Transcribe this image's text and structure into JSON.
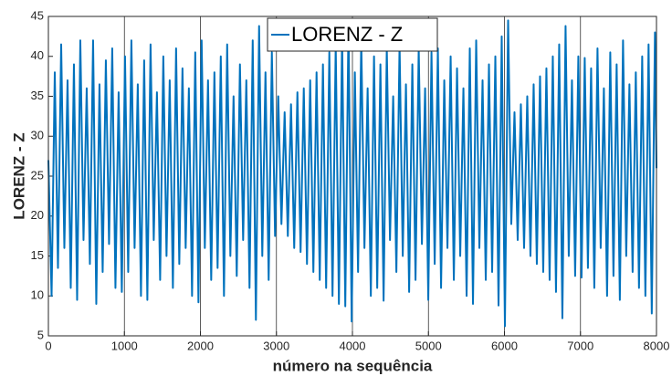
{
  "chart_data": {
    "type": "line",
    "xlabel": "número na sequência",
    "ylabel": "LORENZ - Z",
    "legend_loc": "upper center",
    "grid": "x",
    "xlim": [
      0,
      8000
    ],
    "xticks": [
      0,
      1000,
      2000,
      3000,
      4000,
      5000,
      6000,
      7000,
      8000
    ],
    "ylim": [
      5,
      45
    ],
    "yticks": [
      5,
      10,
      15,
      20,
      25,
      30,
      35,
      40,
      45
    ],
    "x": [
      0,
      42,
      84,
      126,
      168,
      210,
      252,
      294,
      336,
      378,
      420,
      462,
      504,
      546,
      588,
      630,
      672,
      714,
      756,
      798,
      840,
      882,
      924,
      966,
      1008,
      1050,
      1092,
      1134,
      1176,
      1218,
      1260,
      1302,
      1344,
      1386,
      1428,
      1470,
      1512,
      1554,
      1596,
      1638,
      1680,
      1722,
      1764,
      1806,
      1848,
      1890,
      1932,
      1974,
      2016,
      2058,
      2100,
      2142,
      2184,
      2226,
      2268,
      2310,
      2352,
      2394,
      2436,
      2478,
      2520,
      2562,
      2604,
      2646,
      2688,
      2730,
      2772,
      2814,
      2856,
      2898,
      2940,
      2982,
      3024,
      3066,
      3108,
      3150,
      3192,
      3234,
      3276,
      3318,
      3360,
      3402,
      3444,
      3486,
      3528,
      3570,
      3612,
      3654,
      3696,
      3738,
      3780,
      3822,
      3864,
      3906,
      3948,
      3990,
      4032,
      4074,
      4116,
      4158,
      4200,
      4242,
      4284,
      4326,
      4368,
      4410,
      4452,
      4494,
      4536,
      4578,
      4620,
      4662,
      4704,
      4746,
      4788,
      4830,
      4872,
      4914,
      4956,
      4998,
      5040,
      5082,
      5124,
      5166,
      5208,
      5250,
      5292,
      5334,
      5376,
      5418,
      5460,
      5502,
      5544,
      5586,
      5628,
      5670,
      5712,
      5754,
      5796,
      5838,
      5880,
      5922,
      5964,
      6006,
      6048,
      6090,
      6132,
      6174,
      6216,
      6258,
      6300,
      6342,
      6384,
      6426,
      6468,
      6510,
      6552,
      6594,
      6636,
      6678,
      6720,
      6762,
      6804,
      6846,
      6888,
      6930,
      6972,
      7014,
      7056,
      7098,
      7140,
      7182,
      7224,
      7266,
      7308,
      7350,
      7392,
      7434,
      7476,
      7518,
      7560,
      7602,
      7644,
      7686,
      7728,
      7770,
      7812,
      7854,
      7896,
      7938,
      7980,
      8000
    ],
    "series": [
      {
        "name": "LORENZ - Z",
        "color": "#0072bd",
        "values": [
          27,
          10,
          38,
          13.5,
          41.5,
          16,
          37,
          11,
          39,
          9.5,
          42,
          17,
          36,
          14,
          42,
          9,
          36.5,
          13,
          39.5,
          16.5,
          41,
          11,
          35.5,
          10.5,
          40,
          13,
          42,
          16,
          36.5,
          10,
          39.5,
          9.5,
          41.5,
          17,
          35.5,
          12,
          40,
          15,
          37,
          11,
          41,
          14,
          38.5,
          16,
          36,
          10,
          40.5,
          9.2,
          42,
          16,
          37,
          12,
          38,
          13.5,
          40,
          10,
          41.5,
          15,
          35,
          12.5,
          39,
          17,
          37,
          11,
          42,
          7,
          43.8,
          15,
          38,
          12,
          40.5,
          17.5,
          35,
          19,
          33,
          17.5,
          34,
          16,
          35.5,
          15.5,
          36,
          14,
          37,
          13,
          38,
          12,
          39,
          11,
          40.5,
          10,
          41.5,
          9,
          42.5,
          8.7,
          44,
          6.8,
          38,
          13,
          42,
          16,
          36,
          10,
          40,
          11,
          39,
          9.4,
          41,
          17,
          35,
          13,
          41.5,
          15,
          36.5,
          10.5,
          39,
          12,
          41,
          16.5,
          36,
          9.5,
          40.5,
          14,
          41,
          11,
          37,
          16,
          40,
          12,
          38.5,
          15,
          36,
          10,
          41,
          9,
          42,
          16,
          37,
          12,
          39,
          13,
          40,
          8.8,
          42.5,
          6.2,
          44.5,
          19,
          33,
          17,
          34,
          16,
          35,
          15,
          36.5,
          14,
          37.5,
          13,
          38.5,
          12,
          40,
          10.5,
          41.5,
          7.2,
          43.8,
          15,
          37,
          12.5,
          40,
          12.3,
          39.8,
          13.5,
          38.5,
          11,
          41,
          16,
          36,
          10,
          40.5,
          12.5,
          39,
          9.5,
          42,
          15,
          36.5,
          13,
          38,
          11,
          40,
          10,
          41.5,
          7.8,
          43,
          26
        ]
      }
    ]
  }
}
